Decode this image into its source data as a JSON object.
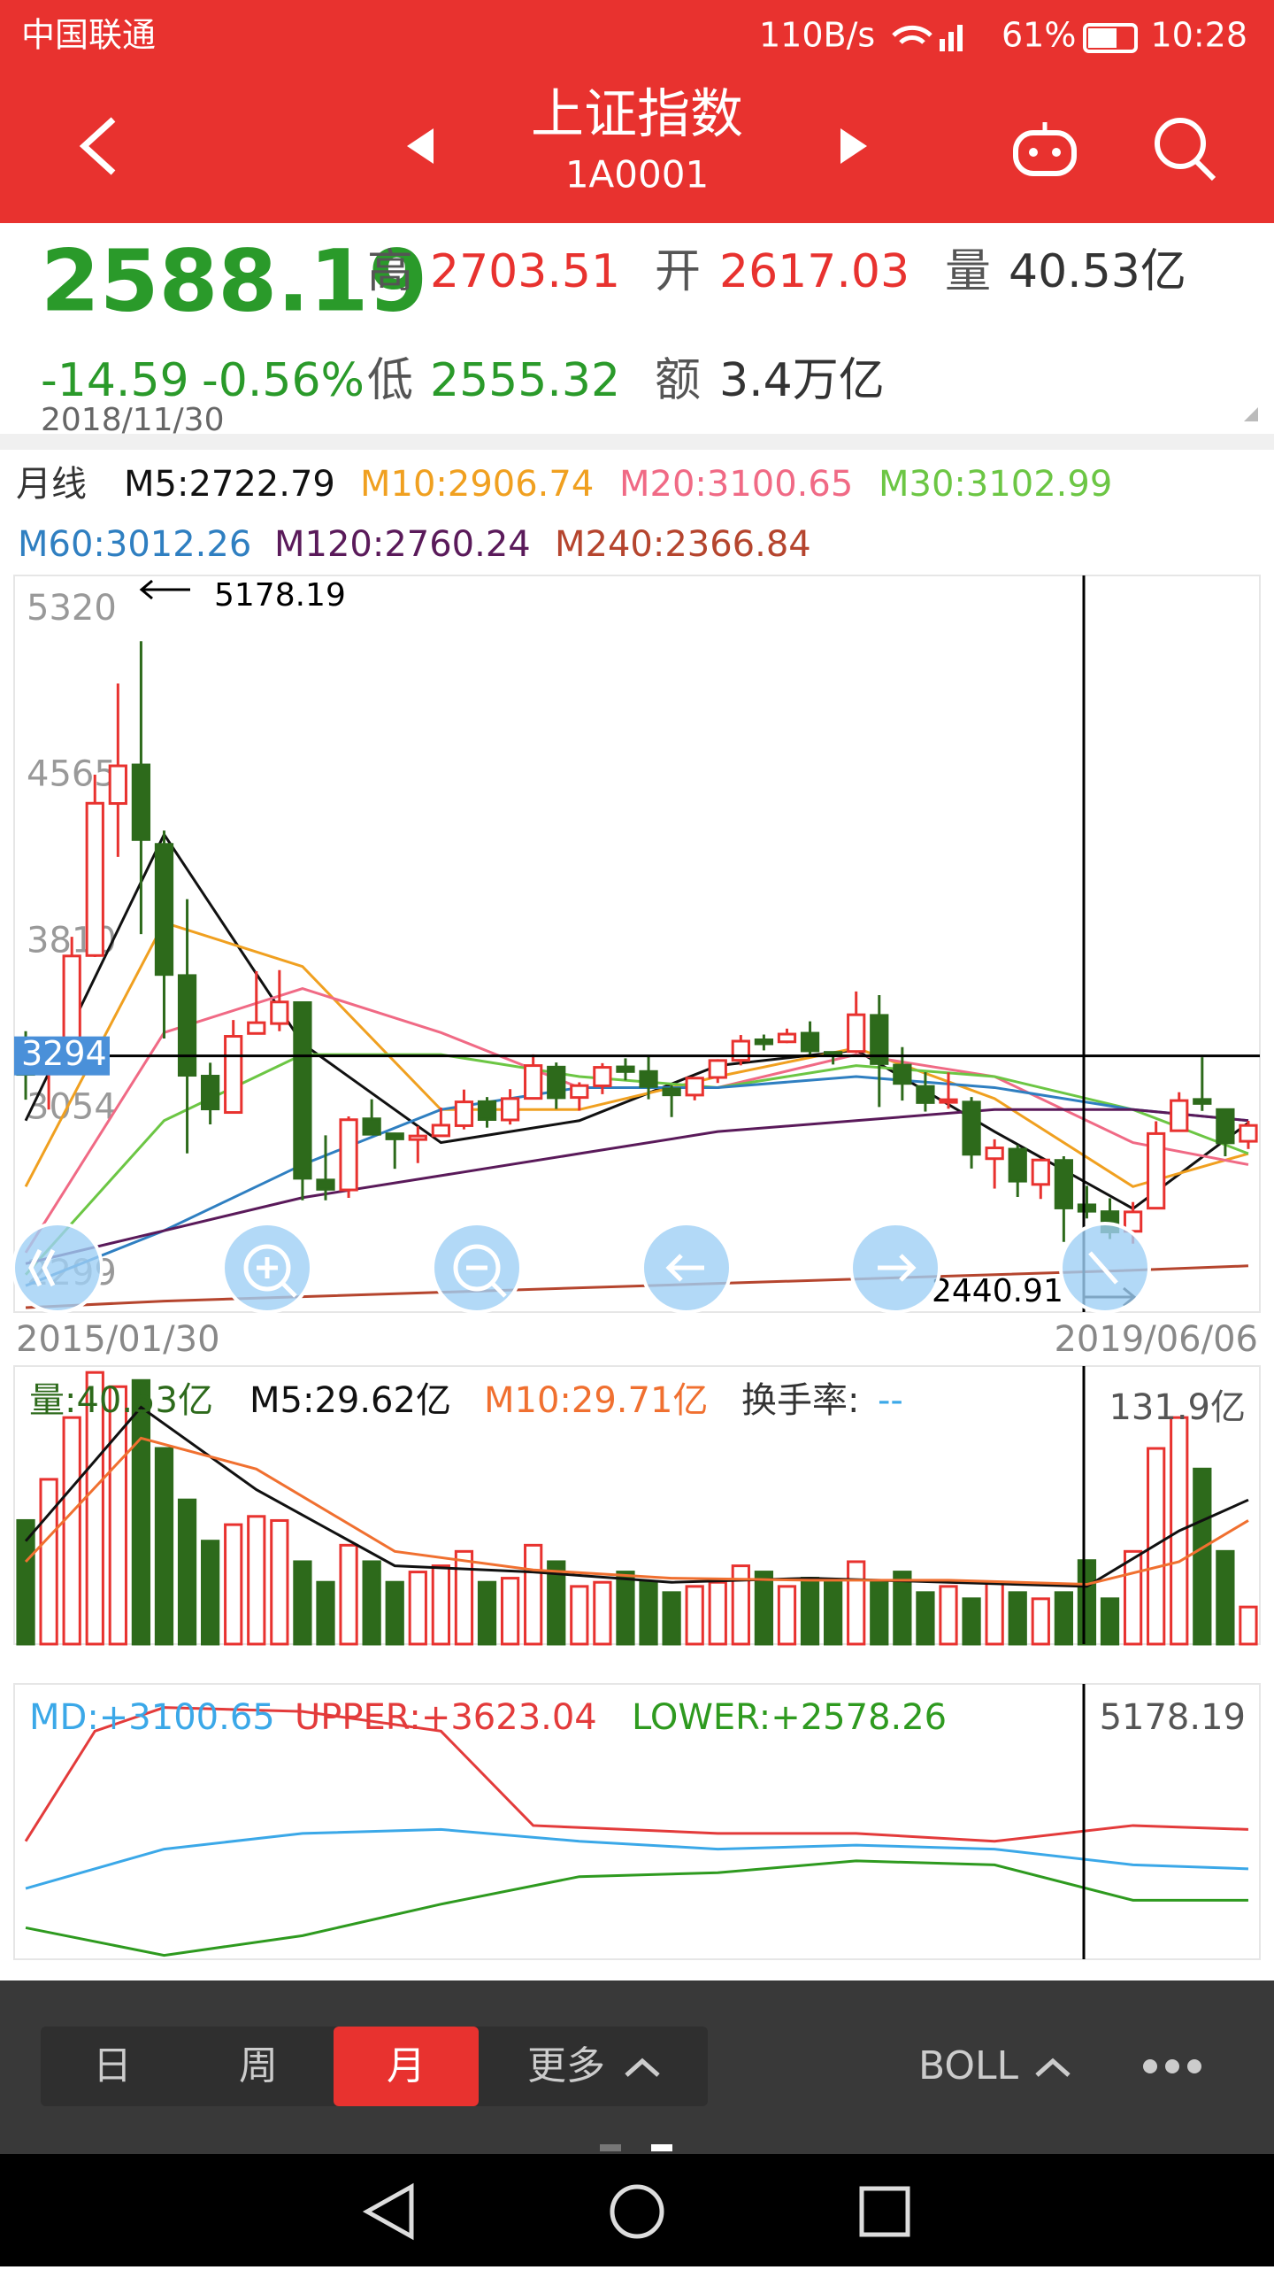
{
  "status_bar": {
    "carrier": "中国联通",
    "speed": "110B/s",
    "battery": "61%",
    "time": "10:28"
  },
  "header": {
    "title": "上证指数",
    "code": "1A0001"
  },
  "quote": {
    "price": "2588.19",
    "change": "-14.59",
    "change_pct": "-0.56%",
    "date": "2018/11/30",
    "high_label": "高",
    "high": "2703.51",
    "open_label": "开",
    "open": "2617.03",
    "volume_label": "量",
    "volume": "40.53亿",
    "low_label": "低",
    "low": "2555.32",
    "amount_label": "额",
    "amount": "3.4万亿"
  },
  "period_label": "月线",
  "chart_data": [
    {
      "type": "candlestick",
      "ylim": [
        2130,
        5477
      ],
      "yticks": [
        5320,
        4565,
        3810,
        3054,
        2299
      ],
      "x_labels": [
        "2015/01/30",
        "2019/06/06"
      ],
      "colors": {
        "up": "#e8322f",
        "down": "#2d6a1b"
      },
      "open": [
        3258,
        3212,
        3336,
        3750,
        4441,
        4616,
        4255,
        3659,
        3202,
        3037,
        3396,
        3441,
        3536,
        2730,
        2685,
        3008,
        2940,
        2914,
        2931,
        2977,
        3086,
        3003,
        3101,
        3243,
        3105,
        3158,
        3244,
        3223,
        3144,
        3116,
        3196,
        3274,
        3367,
        3358,
        3397,
        3310,
        3314,
        3478,
        3252,
        3155,
        3083,
        3084,
        2827,
        2870,
        2710,
        2819,
        2617.03,
        2586,
        2497,
        2602,
        2954,
        3096,
        3050,
        2906
      ],
      "high": [
        3406,
        3330,
        3835,
        4572,
        4986,
        5178.19,
        4318,
        4006,
        3263,
        3457,
        3679,
        3684,
        3538,
        2933,
        3019,
        3097,
        2945,
        2974,
        3059,
        3141,
        3107,
        3143,
        3301,
        3264,
        3174,
        3261,
        3283,
        3295,
        3160,
        3195,
        3279,
        3389,
        3391,
        3418,
        3451,
        3311,
        3587,
        3570,
        3334,
        3220,
        3219,
        3107,
        2915,
        2889,
        2827,
        2838,
        2703.51,
        2647,
        2630,
        2997,
        3129,
        3288,
        3052,
        2999
      ],
      "low": [
        3095,
        3050,
        3323,
        3743,
        4198,
        3847,
        3373,
        2851,
        2983,
        3037,
        3402,
        3406,
        2638,
        2638,
        2649,
        2934,
        2781,
        2807,
        2930,
        2960,
        2968,
        2982,
        3096,
        3053,
        3045,
        3120,
        3183,
        3097,
        3016,
        3092,
        3171,
        3251,
        3319,
        3352,
        3301,
        3255,
        3307,
        3062,
        3091,
        3041,
        3054,
        2782,
        2691,
        2653,
        2644,
        2449,
        2555.32,
        2462,
        2440.91,
        2604,
        2953,
        3044,
        2838,
        2871
      ],
      "close": [
        3210,
        3310,
        3748,
        4442,
        4612,
        4277,
        3664,
        3206,
        3053,
        3383,
        3445,
        3539,
        2738,
        2688,
        3004,
        2938,
        2917,
        2930,
        2979,
        3085,
        3005,
        3100,
        3250,
        3104,
        3159,
        3242,
        3223,
        3155,
        3117,
        3193,
        3273,
        3361,
        3349,
        3393,
        3317,
        3307,
        3481,
        3259,
        3169,
        3082,
        3095,
        2847,
        2876,
        2725,
        2821,
        2603,
        2588.19,
        2494,
        2585,
        2941,
        3091,
        3078,
        2899,
        2978
      ],
      "series": [
        {
          "name": "M5:2722.79",
          "color": "#111111",
          "x": [
            0,
            6,
            12,
            18,
            24,
            30,
            36,
            42,
            48,
            53
          ],
          "values": [
            3000,
            4300,
            3350,
            2900,
            3000,
            3250,
            3320,
            2950,
            2600,
            2990
          ]
        },
        {
          "name": "M10:2906.74",
          "color": "#f0a020",
          "x": [
            0,
            6,
            12,
            18,
            24,
            30,
            36,
            42,
            48,
            53
          ],
          "values": [
            2700,
            3900,
            3700,
            3050,
            3050,
            3200,
            3330,
            3100,
            2700,
            2850
          ]
        },
        {
          "name": "M20:3100.65",
          "color": "#f06a85",
          "x": [
            0,
            6,
            12,
            18,
            24,
            30,
            36,
            42,
            48,
            53
          ],
          "values": [
            2400,
            3400,
            3600,
            3400,
            3150,
            3150,
            3300,
            3200,
            2900,
            2800
          ]
        },
        {
          "name": "M30:3102.99",
          "color": "#6cc644",
          "x": [
            0,
            6,
            12,
            18,
            24,
            30,
            36,
            42,
            48,
            53
          ],
          "values": [
            2300,
            3000,
            3300,
            3300,
            3200,
            3150,
            3250,
            3200,
            3050,
            2850
          ]
        },
        {
          "name": "M60:3012.26",
          "color": "#2f7fc1",
          "x": [
            0,
            6,
            12,
            18,
            24,
            30,
            36,
            42,
            48,
            53
          ],
          "values": [
            2250,
            2500,
            2800,
            3050,
            3150,
            3150,
            3200,
            3150,
            3050,
            3000
          ]
        },
        {
          "name": "M120:2760.24",
          "color": "#5a1a5a",
          "x": [
            0,
            6,
            12,
            18,
            24,
            30,
            36,
            42,
            48,
            53
          ],
          "values": [
            2350,
            2500,
            2650,
            2750,
            2850,
            2950,
            3000,
            3050,
            3050,
            3000
          ]
        },
        {
          "name": "M240:2366.84",
          "color": "#b5452e",
          "x": [
            0,
            6,
            12,
            18,
            24,
            30,
            36,
            42,
            48,
            53
          ],
          "values": [
            2150,
            2180,
            2200,
            2220,
            2240,
            2260,
            2280,
            2300,
            2320,
            2340
          ]
        }
      ],
      "annotations": {
        "max": "5178.19",
        "min": "2440.91",
        "crosshair": 3294
      }
    },
    {
      "type": "bar",
      "legend_label": "量:40.53亿",
      "ylim": [
        0,
        135
      ],
      "yticks": [
        {
          "value": 131.9,
          "label": "131.9亿"
        }
      ],
      "values": [
        60,
        80,
        110,
        131.9,
        125,
        128,
        95,
        70,
        50,
        58,
        62,
        60,
        40,
        30,
        48,
        40,
        30,
        35,
        38,
        45,
        30,
        32,
        48,
        40,
        28,
        30,
        35,
        30,
        25,
        28,
        30,
        38,
        35,
        28,
        32,
        30,
        40,
        30,
        35,
        25,
        28,
        22,
        30,
        25,
        22,
        25,
        40.53,
        22,
        45,
        95,
        110,
        85,
        45,
        18
      ],
      "turnover_label": "换手率:",
      "turnover_value": "--",
      "series": [
        {
          "name": "M5:29.62亿",
          "color": "#111111",
          "x": [
            0,
            5,
            10,
            16,
            22,
            28,
            34,
            40,
            46,
            50,
            53
          ],
          "values": [
            50,
            115,
            75,
            38,
            35,
            30,
            32,
            30,
            28,
            55,
            70
          ]
        },
        {
          "name": "M10:29.71亿",
          "color": "#f07030",
          "x": [
            0,
            5,
            10,
            16,
            22,
            28,
            34,
            40,
            46,
            50,
            53
          ],
          "values": [
            40,
            100,
            85,
            45,
            36,
            32,
            31,
            31,
            29,
            40,
            60
          ]
        }
      ]
    },
    {
      "type": "line",
      "ylim": [
        1900,
        5400
      ],
      "yticks": [
        5178.19
      ],
      "series": [
        {
          "name": "MD:+3100.65",
          "color": "#3ba8e8",
          "x": [
            0,
            6,
            12,
            18,
            24,
            30,
            36,
            42,
            48,
            53
          ],
          "values": [
            2800,
            3300,
            3500,
            3550,
            3400,
            3300,
            3350,
            3300,
            3100,
            3050
          ]
        },
        {
          "name": "UPPER:+3623.04",
          "color": "#e33b3b",
          "x": [
            0,
            3,
            6,
            12,
            18,
            22,
            30,
            36,
            42,
            48,
            53
          ],
          "values": [
            3400,
            4800,
            5100,
            5050,
            4800,
            3600,
            3500,
            3500,
            3400,
            3600,
            3550
          ]
        },
        {
          "name": "LOWER:+2578.26",
          "color": "#2e9a1f",
          "x": [
            0,
            6,
            12,
            18,
            24,
            30,
            36,
            42,
            48,
            53
          ],
          "values": [
            2300,
            1950,
            2200,
            2600,
            2950,
            3000,
            3150,
            3100,
            2650,
            2650
          ]
        }
      ]
    }
  ],
  "toolbar": {
    "tabs": [
      "日",
      "周",
      "月",
      "更多"
    ],
    "indicator": "BOLL"
  }
}
